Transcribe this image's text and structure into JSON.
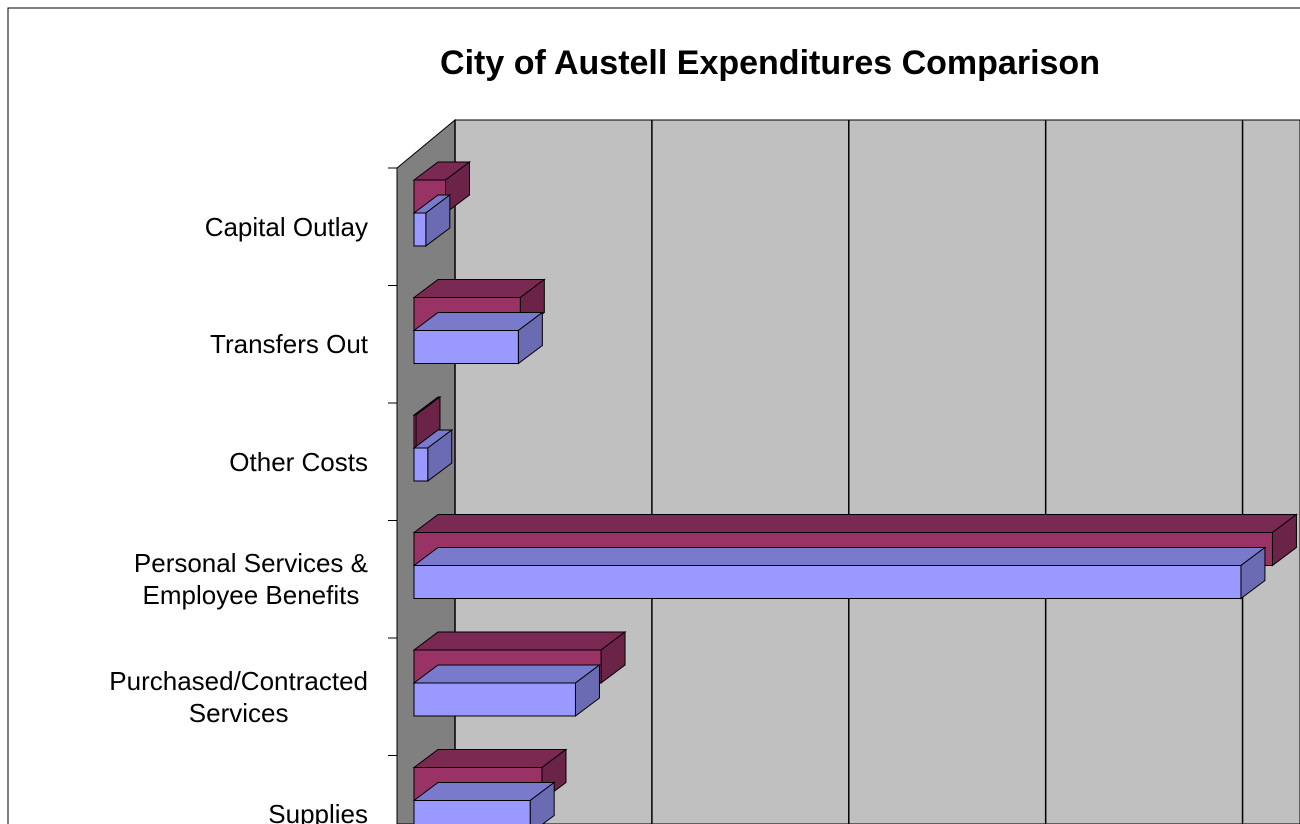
{
  "chart_data": {
    "type": "bar3d_horizontal",
    "title": "City of Austell Expenditures Comparison",
    "categories": [
      "Capital Outlay",
      "Transfers Out",
      "Other Costs",
      "Personal Services &\nEmployee Benefits",
      "Purchased/Contracted\nServices",
      "Supplies"
    ],
    "series": [
      {
        "color": "#9999ff",
        "values": [
          0.06,
          0.53,
          0.07,
          4.2,
          0.82,
          0.59
        ]
      },
      {
        "color": "#993366",
        "values": [
          0.16,
          0.54,
          0.01,
          4.36,
          0.95,
          0.65
        ]
      }
    ],
    "xlim": [
      0,
      4.5
    ],
    "xticks": [
      0,
      1,
      2,
      3,
      4
    ],
    "grid": true
  }
}
